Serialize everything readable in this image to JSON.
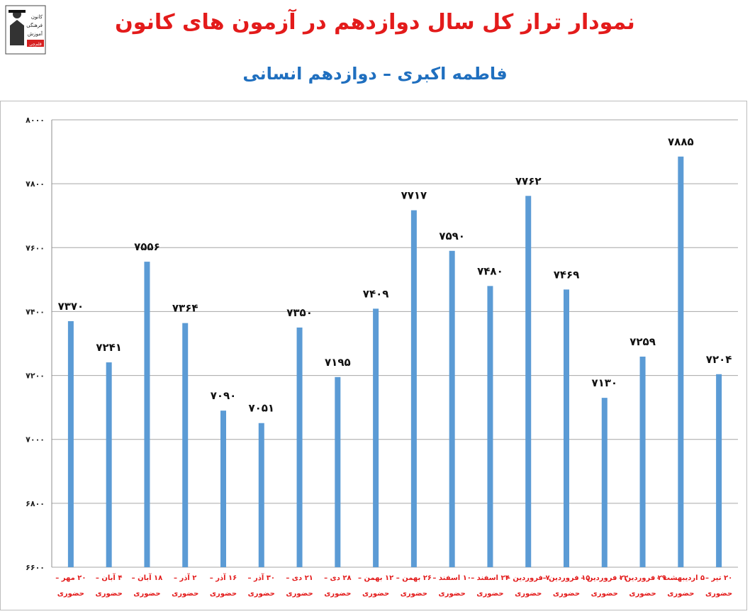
{
  "header": {
    "title": "نمودار تراز کل سال دوازدهم در آزمون های کانون",
    "subtitle": "فاطمه اکبری – دوازدهم انسانی"
  },
  "logo": {
    "lines": [
      "کانون",
      "فرهنگی",
      "آموزش"
    ],
    "badge": "قلم‌چی"
  },
  "colors": {
    "title": "#e31b1b",
    "subtitle": "#1f6fbf",
    "bar": "#5b9bd5",
    "category": "#e31b1b"
  },
  "chart_data": {
    "type": "bar",
    "categories": [
      [
        "۲۰ مهر –",
        "حضوری"
      ],
      [
        "۴ آبان –",
        "حضوری"
      ],
      [
        "۱۸ آبان –",
        "حضوری"
      ],
      [
        "۲ آذر –",
        "حضوری"
      ],
      [
        "۱۶ آذر –",
        "حضوری"
      ],
      [
        "۳۰ آذر –",
        "حضوری"
      ],
      [
        "۲۱ دی –",
        "حضوری"
      ],
      [
        "۲۸ دی –",
        "حضوری"
      ],
      [
        "۱۲ بهمن –",
        "حضوری"
      ],
      [
        "۲۶ بهمن –",
        "حضوری"
      ],
      [
        "۱۰ اسفند –",
        "حضوری"
      ],
      [
        "۲۴ اسفند –",
        "حضوری"
      ],
      [
        "۷ فروردین –",
        "حضوری"
      ],
      [
        "۱۵ فروردین –",
        "حضوری"
      ],
      [
        "۲۲ فروردین –",
        "حضوری"
      ],
      [
        "۲۹ فروردین –",
        "حضوری"
      ],
      [
        "۵ اردیبهشت –",
        "حضوری"
      ],
      [
        "۲۰ تیر –",
        "حضوری"
      ]
    ],
    "values": [
      7370,
      7241,
      7556,
      7364,
      7090,
      7051,
      7350,
      7195,
      7409,
      7717,
      7590,
      7480,
      7762,
      7469,
      7130,
      7259,
      7885,
      7204
    ],
    "value_labels": [
      "۷۳۷۰",
      "۷۲۴۱",
      "۷۵۵۶",
      "۷۳۶۴",
      "۷۰۹۰",
      "۷۰۵۱",
      "۷۳۵۰",
      "۷۱۹۵",
      "۷۴۰۹",
      "۷۷۱۷",
      "۷۵۹۰",
      "۷۴۸۰",
      "۷۷۶۲",
      "۷۴۶۹",
      "۷۱۳۰",
      "۷۲۵۹",
      "۷۸۸۵",
      "۷۲۰۴"
    ],
    "yticks": [
      6600,
      6800,
      7000,
      7200,
      7400,
      7600,
      7800,
      8000
    ],
    "ytick_labels": [
      "۶۶۰۰",
      "۶۸۰۰",
      "۷۰۰۰",
      "۷۲۰۰",
      "۷۴۰۰",
      "۷۶۰۰",
      "۷۸۰۰",
      "۸۰۰۰"
    ],
    "ylim": [
      6600,
      8000
    ],
    "grid": true,
    "legend": "none"
  }
}
